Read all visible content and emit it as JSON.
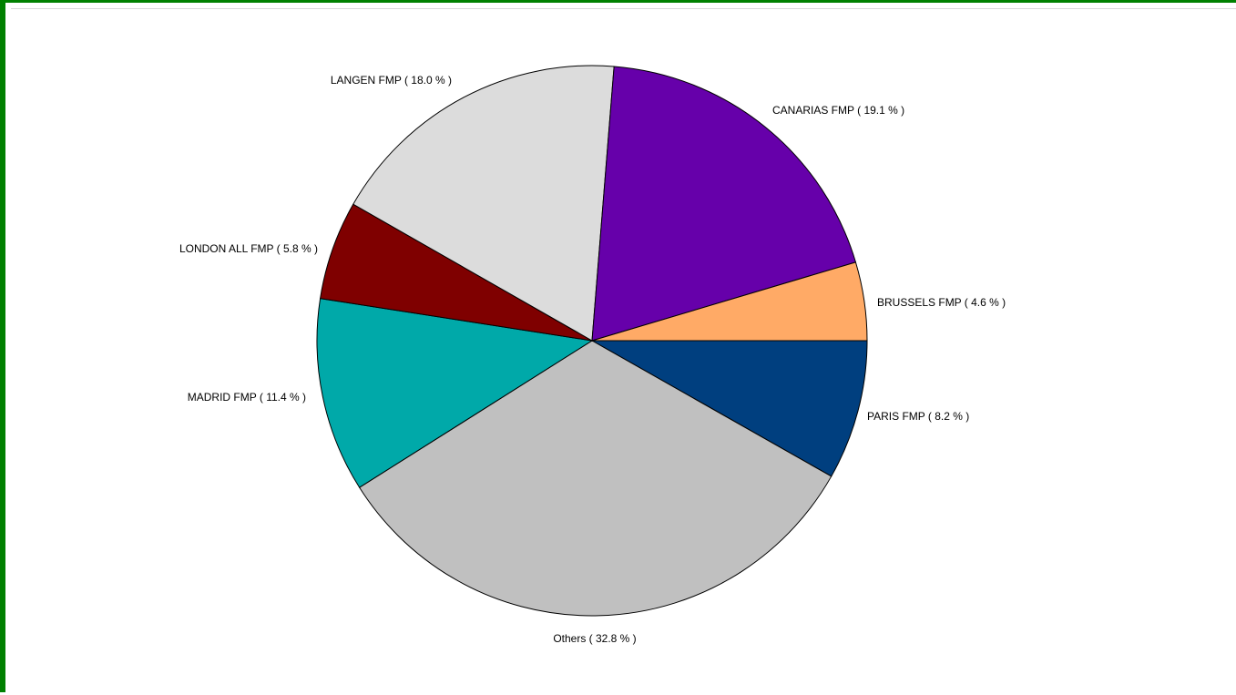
{
  "chart_data": {
    "type": "pie",
    "title": "",
    "start_angle_deg": 0,
    "direction": "clockwise",
    "legend": "none",
    "slices": [
      {
        "label": "PARIS FMP",
        "value": 8.2,
        "text": "PARIS FMP  ( 8.2 % )",
        "color": "#003f7f"
      },
      {
        "label": "Others",
        "value": 32.8,
        "text": "Others  ( 32.8 % )",
        "color": "#c0c0c0"
      },
      {
        "label": "MADRID FMP",
        "value": 11.4,
        "text": "MADRID FMP  ( 11.4 % )",
        "color": "#00a9a9"
      },
      {
        "label": "LONDON ALL FMP",
        "value": 5.8,
        "text": "LONDON ALL FMP  ( 5.8 % )",
        "color": "#7f0000"
      },
      {
        "label": "LANGEN FMP",
        "value": 18.0,
        "text": "LANGEN FMP  ( 18.0 % )",
        "color": "#dcdcdc"
      },
      {
        "label": "CANARIAS FMP",
        "value": 19.1,
        "text": "CANARIAS FMP  ( 19.1 % )",
        "color": "#6600aa"
      },
      {
        "label": "BRUSSELS FMP",
        "value": 4.6,
        "text": "BRUSSELS FMP  ( 4.6 % )",
        "color": "#ffaa66"
      }
    ]
  }
}
